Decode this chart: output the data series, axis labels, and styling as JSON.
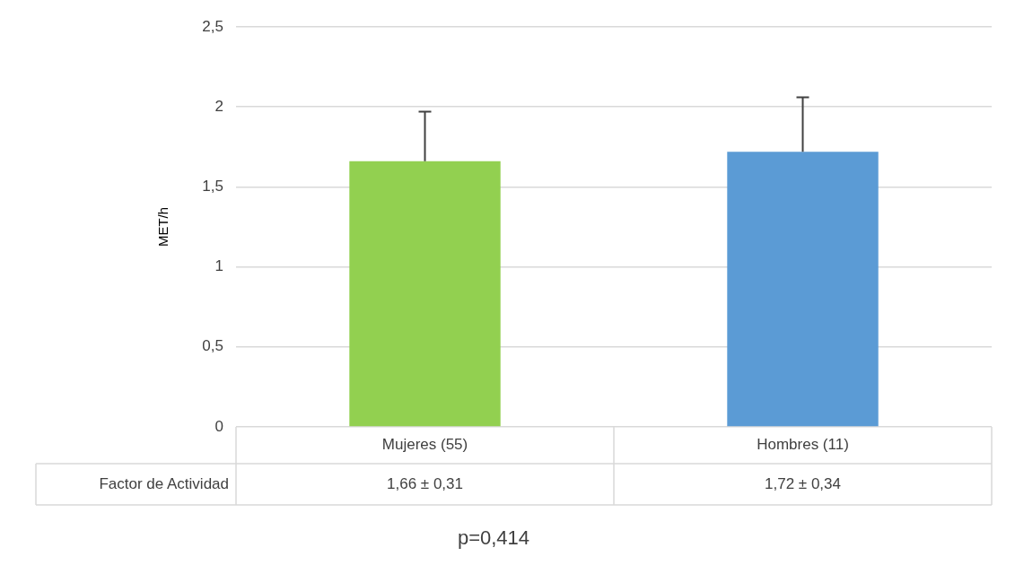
{
  "chart_data": {
    "type": "bar",
    "ylabel": "MET/h",
    "categories": [
      "Mujeres (55)",
      "Hombres (11)"
    ],
    "series": [
      {
        "name": "Factor de Actividad",
        "colors": [
          "#92d050",
          "#5b9bd5"
        ],
        "values": [
          1.66,
          1.72
        ],
        "errors": [
          [
            1.66,
            1.97
          ],
          [
            1.72,
            2.06
          ]
        ],
        "value_labels": [
          "1,66 ± 0,31",
          "1,72 ± 0,34"
        ]
      }
    ],
    "ylim": [
      0,
      2.5
    ],
    "yticks": [
      0,
      {
        "value": 0.5,
        "label": "0,5"
      },
      1,
      {
        "value": 1.5,
        "label": "1,5"
      },
      2,
      {
        "value": 2.5,
        "label": "2,5"
      }
    ],
    "grid": "y",
    "legend": false,
    "annotations": [
      "p=0,414"
    ]
  }
}
